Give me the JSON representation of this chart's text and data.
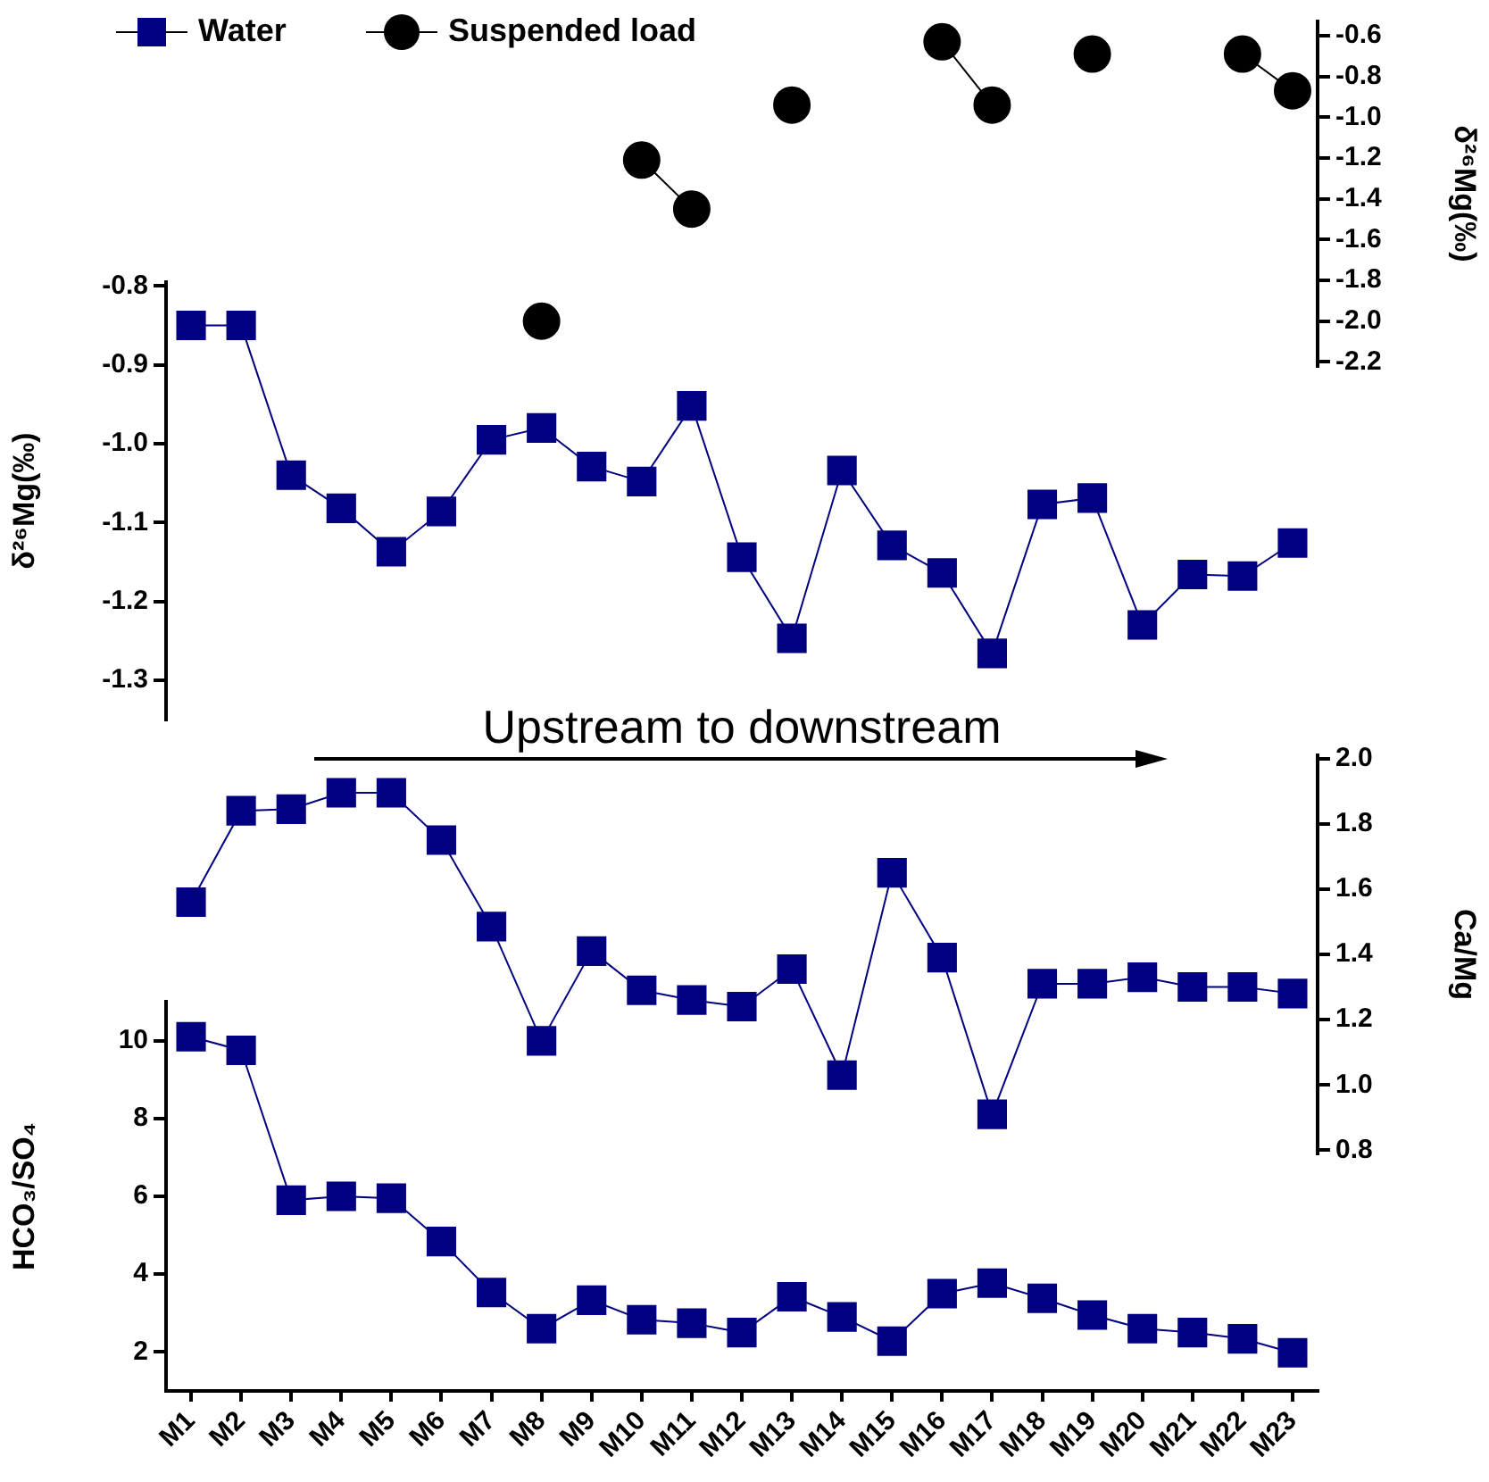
{
  "chart_data": [
    {
      "type": "line",
      "categories": [
        "M1",
        "M2",
        "M3",
        "M4",
        "M5",
        "M6",
        "M7",
        "M8",
        "M9",
        "M10",
        "M11",
        "M12",
        "M13",
        "M14",
        "M15",
        "M16",
        "M17",
        "M18",
        "M19",
        "M20",
        "M21",
        "M22",
        "M23"
      ],
      "series": [
        {
          "name": "Suspended load",
          "color": "#000000",
          "axis": "y2",
          "values": [
            null,
            null,
            null,
            null,
            null,
            null,
            null,
            -2.0,
            null,
            -1.21,
            -1.45,
            null,
            -0.94,
            null,
            null,
            -0.63,
            -0.94,
            null,
            -0.69,
            null,
            null,
            -0.69,
            -0.87
          ]
        }
      ],
      "y2lim": [
        -2.22,
        -0.53
      ],
      "y2ticks": [
        {
          "value": -0.6,
          "label": "-0.6"
        },
        {
          "value": -0.8,
          "label": "-0.8"
        },
        {
          "value": -1,
          "label": "-1.0"
        },
        {
          "value": -1.2,
          "label": "-1.2"
        },
        {
          "value": -1.4,
          "label": "-1.4"
        },
        {
          "value": -1.6,
          "label": "-1.6"
        },
        {
          "value": -1.8,
          "label": "-1.8"
        },
        {
          "value": -2,
          "label": "-2.0"
        },
        {
          "value": -2.2,
          "label": "-2.2"
        }
      ],
      "y2label": "δ²⁶Mg(‰)",
      "marker": "circle",
      "legend": "top",
      "grid": false,
      "tick_labels": "y"
    },
    {
      "type": "line",
      "categories": [
        "M1",
        "M2",
        "M3",
        "M4",
        "M5",
        "M6",
        "M7",
        "M8",
        "M9",
        "M10",
        "M11",
        "M12",
        "M13",
        "M14",
        "M15",
        "M16",
        "M17",
        "M18",
        "M19",
        "M20",
        "M21",
        "M22",
        "M23"
      ],
      "series": [
        {
          "name": "Water",
          "color": "#000080",
          "values": [
            -0.85,
            -0.85,
            -1.04,
            -1.082,
            -1.137,
            -1.086,
            -0.995,
            -0.98,
            -1.029,
            -1.048,
            -0.952,
            -1.144,
            -1.247,
            -1.034,
            -1.129,
            -1.164,
            -1.266,
            -1.077,
            -1.069,
            -1.23,
            -1.166,
            -1.168,
            -1.126
          ]
        }
      ],
      "ylim": [
        -1.35,
        -0.795
      ],
      "yticks": [
        {
          "value": -0.8,
          "label": "-0.8"
        },
        {
          "value": -0.9,
          "label": "-0.9"
        },
        {
          "value": -1,
          "label": "-1.0"
        },
        {
          "value": -1.1,
          "label": "-1.1"
        },
        {
          "value": -1.2,
          "label": "-1.2"
        },
        {
          "value": -1.3,
          "label": "-1.3"
        }
      ],
      "ylabel": "δ²⁶Mg(‰)",
      "marker": "square",
      "legend": "top left",
      "grid": false,
      "tick_labels": "y",
      "annotations": [
        "Upstream to downstream"
      ]
    },
    {
      "type": "line",
      "categories": [
        "M1",
        "M2",
        "M3",
        "M4",
        "M5",
        "M6",
        "M7",
        "M8",
        "M9",
        "M10",
        "M11",
        "M12",
        "M13",
        "M14",
        "M15",
        "M16",
        "M17",
        "M18",
        "M19",
        "M20",
        "M21",
        "M22",
        "M23"
      ],
      "series": [
        {
          "color": "#000080",
          "axis": "y2",
          "values": [
            1.56,
            1.84,
            1.845,
            1.895,
            1.895,
            1.75,
            1.485,
            1.135,
            1.41,
            1.29,
            1.26,
            1.24,
            1.355,
            1.03,
            1.65,
            1.39,
            0.91,
            1.31,
            1.31,
            1.33,
            1.3,
            1.3,
            1.28
          ]
        }
      ],
      "y2lim": [
        0.79,
        2.01
      ],
      "y2ticks": [
        {
          "value": 0.8,
          "label": "0.8"
        },
        {
          "value": 1,
          "label": "1.0"
        },
        {
          "value": 1.2,
          "label": "1.2"
        },
        {
          "value": 1.4,
          "label": "1.4"
        },
        {
          "value": 1.6,
          "label": "1.6"
        },
        {
          "value": 1.8,
          "label": "1.8"
        },
        {
          "value": 2,
          "label": "2.0"
        }
      ],
      "y2label": "Ca/Mg",
      "marker": "square",
      "grid": false,
      "tick_labels": "y"
    },
    {
      "type": "line",
      "categories": [
        "M1",
        "M2",
        "M3",
        "M4",
        "M5",
        "M6",
        "M7",
        "M8",
        "M9",
        "M10",
        "M11",
        "M12",
        "M13",
        "M14",
        "M15",
        "M16",
        "M17",
        "M18",
        "M19",
        "M20",
        "M21",
        "M22",
        "M23"
      ],
      "series": [
        {
          "color": "#000080",
          "values": [
            10.1,
            9.75,
            5.9,
            6.0,
            5.95,
            4.84,
            3.53,
            2.6,
            3.33,
            2.83,
            2.74,
            2.5,
            3.42,
            2.9,
            2.28,
            3.5,
            3.77,
            3.38,
            2.95,
            2.6,
            2.5,
            2.34,
            1.98
          ]
        }
      ],
      "ylim": [
        1,
        11
      ],
      "yticks": [
        2,
        4,
        6,
        8,
        10
      ],
      "ylabel": "HCO₃/SO₄",
      "marker": "square",
      "grid": false
    }
  ]
}
